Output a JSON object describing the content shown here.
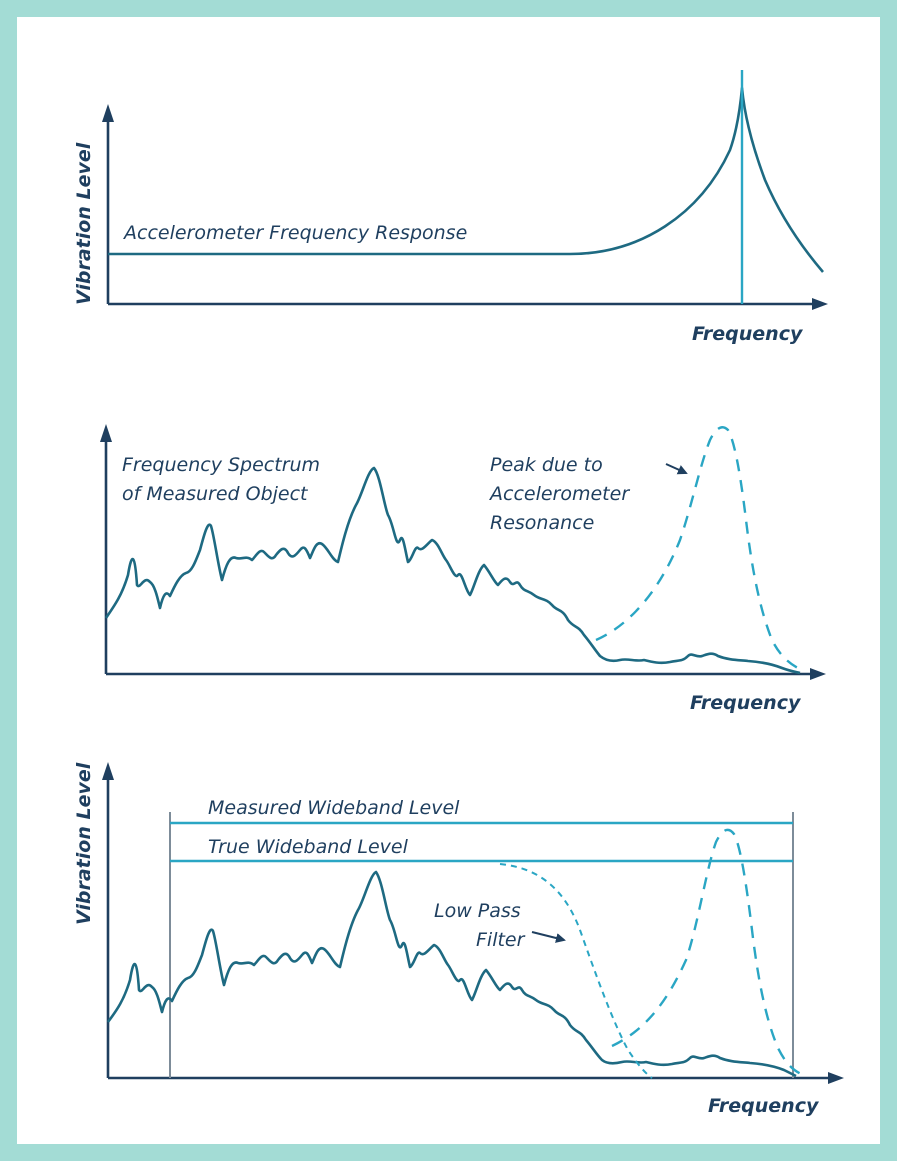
{
  "colors": {
    "frame": "#a3dcd5",
    "axis": "#1f3f5f",
    "curve": "#1e6a82",
    "accent": "#2aa6c4"
  },
  "panel1": {
    "y_label": "Vibration Level",
    "x_label": "Frequency",
    "curve_label": "Accelerometer Frequency Response"
  },
  "panel2": {
    "x_label": "Frequency",
    "spectrum_label_line1": "Frequency Spectrum",
    "spectrum_label_line2": "of Measured Object",
    "peak_label_line1": "Peak due to",
    "peak_label_line2": "Accelerometer",
    "peak_label_line3": "Resonance"
  },
  "panel3": {
    "y_label": "Vibration Level",
    "x_label": "Frequency",
    "measured_label": "Measured Wideband Level",
    "true_label": "True Wideband Level",
    "filter_label_line1": "Low Pass",
    "filter_label_line2": "Filter"
  }
}
